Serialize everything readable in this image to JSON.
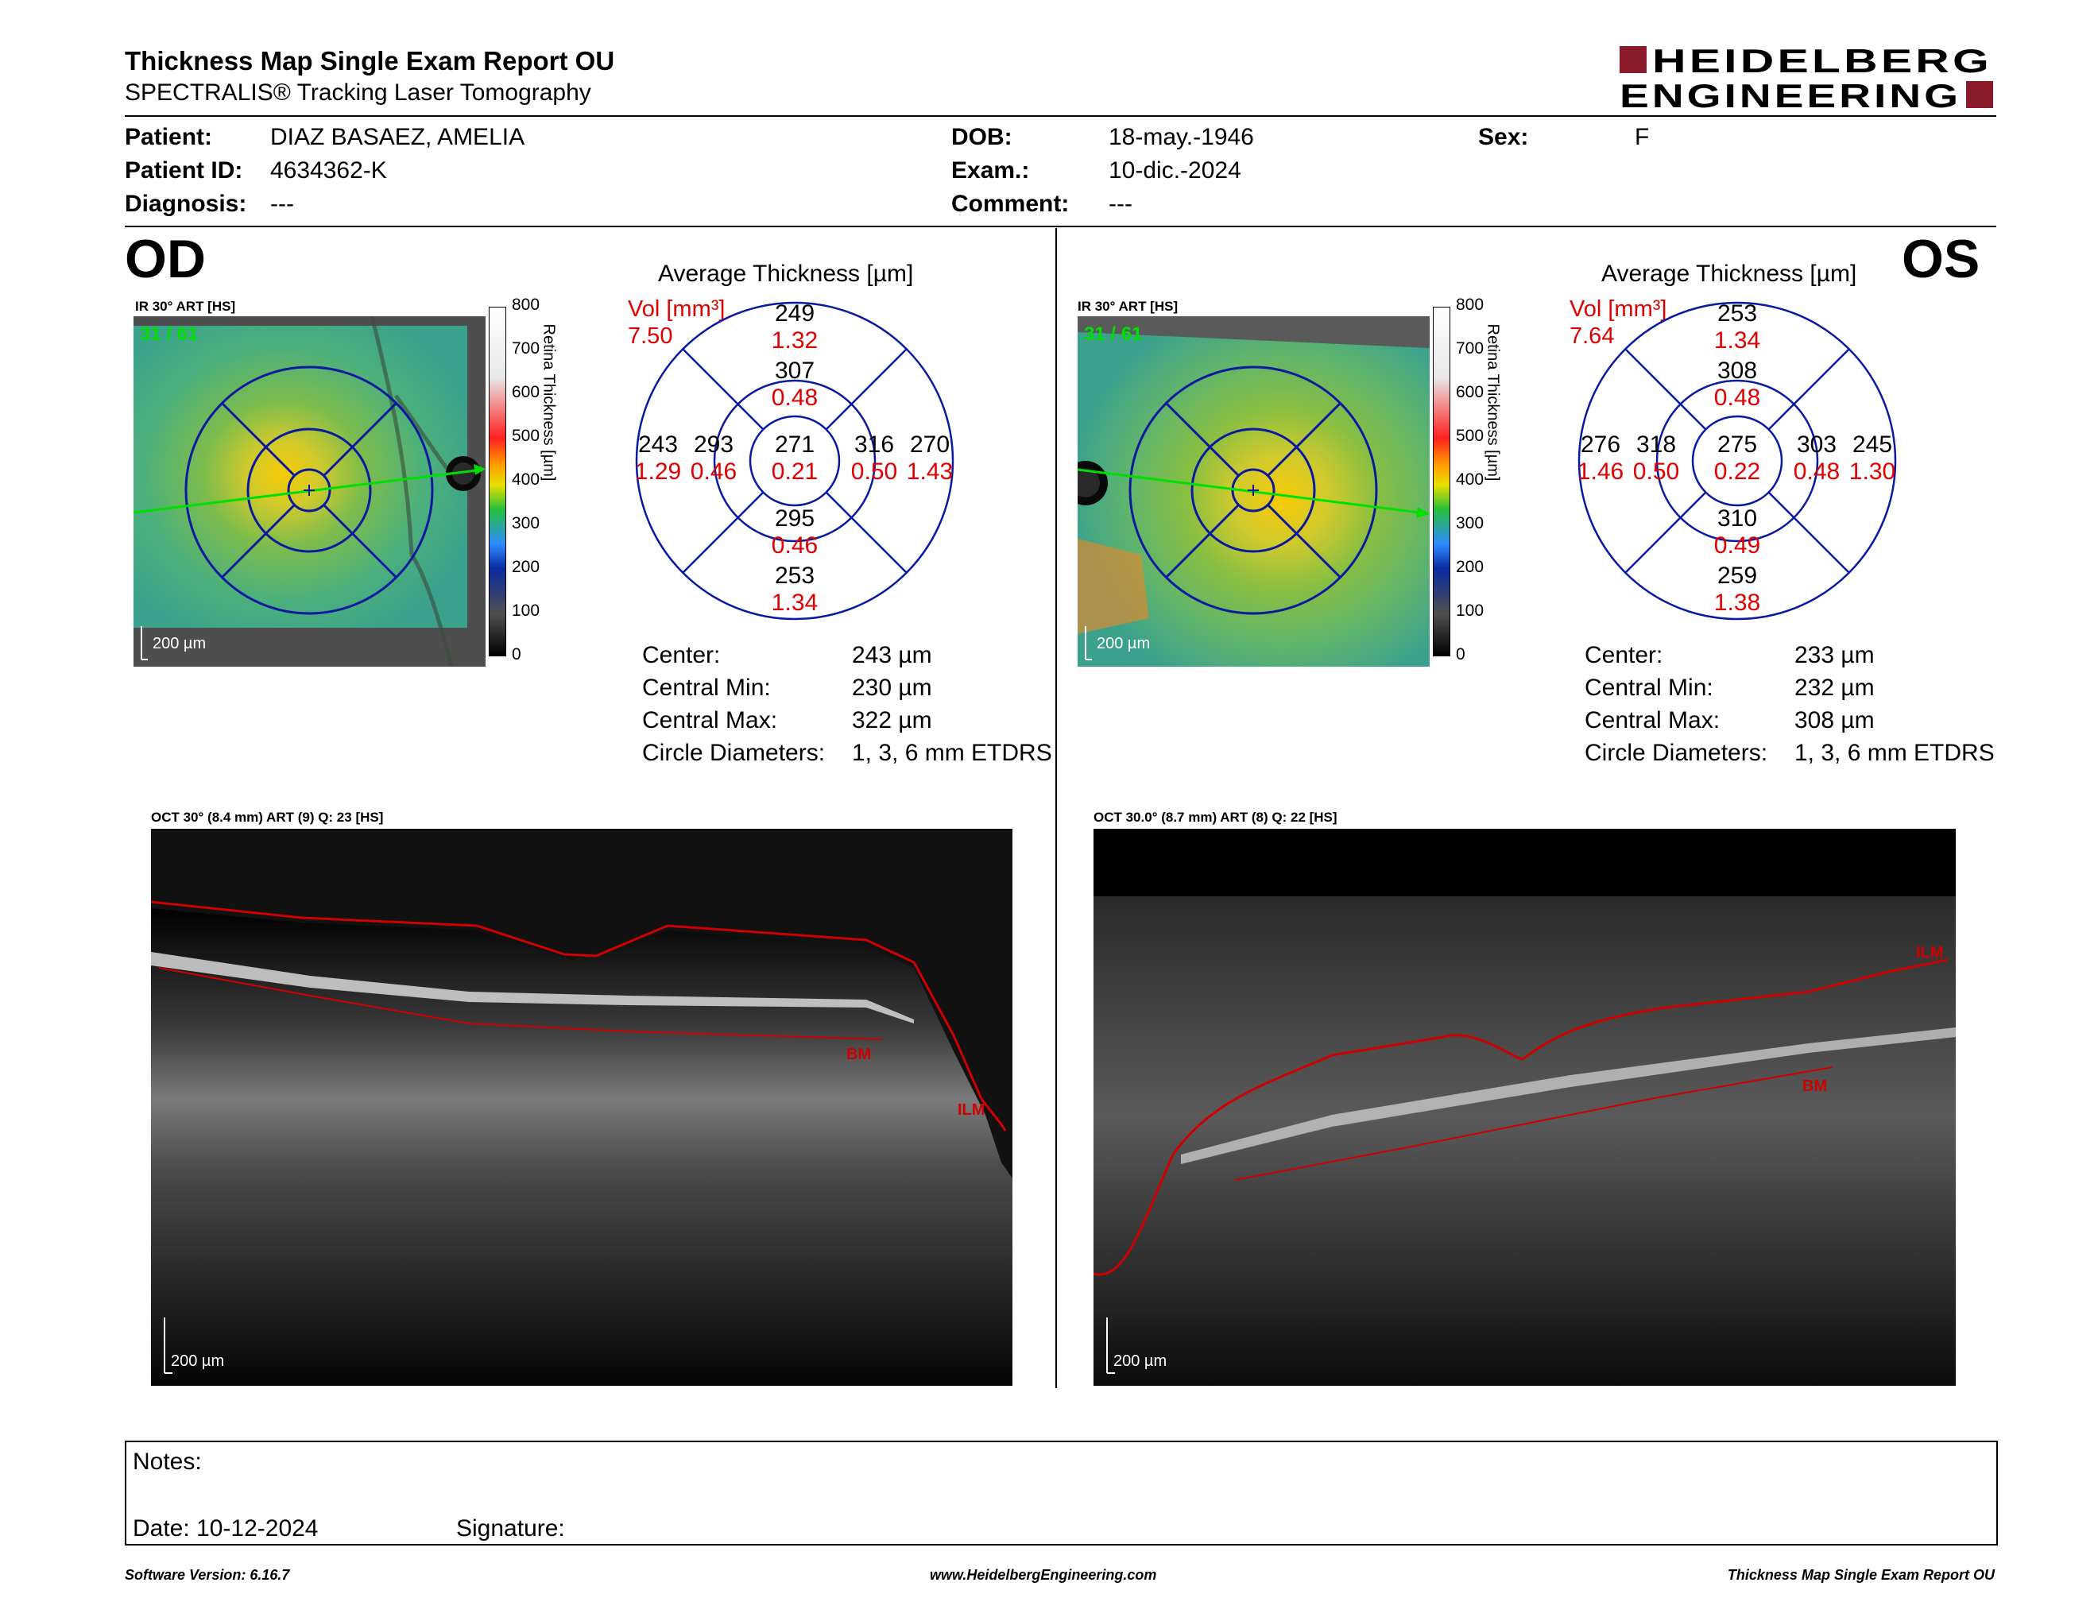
{
  "header": {
    "title": "Thickness Map Single Exam Report OU",
    "subtitle": "SPECTRALIS® Tracking Laser Tomography",
    "logo_line1": "HEIDELBERG",
    "logo_line2": "ENGINEERING",
    "logo_color": "#8b1a2b"
  },
  "patient": {
    "patient_label": "Patient:",
    "patient_value": "DIAZ BASAEZ, AMELIA",
    "id_label": "Patient ID:",
    "id_value": "4634362-K",
    "diagnosis_label": "Diagnosis:",
    "diagnosis_value": "---",
    "dob_label": "DOB:",
    "dob_value": "18-may.-1946",
    "exam_label": "Exam.:",
    "exam_value": "10-dic.-2024",
    "comment_label": "Comment:",
    "comment_value": "---",
    "sex_label": "Sex:",
    "sex_value": "F"
  },
  "od": {
    "eye": "OD",
    "ir_title": "IR 30° ART [HS]",
    "ir_counter": "31 / 61",
    "ir_scale": "200 µm",
    "colorbar_ticks": [
      "800",
      "700",
      "600",
      "500",
      "400",
      "300",
      "200",
      "100",
      "0"
    ],
    "colorbar_label": "Retina Thickness [µm]",
    "avg_title": "Average Thickness [µm]",
    "vol_label": "Vol [mm³]",
    "vol_value": "7.50",
    "sectors": {
      "center": [
        "271",
        "0.21"
      ],
      "inner_sup": [
        "307",
        "0.48"
      ],
      "inner_inf": [
        "295",
        "0.46"
      ],
      "inner_left": [
        "293",
        "0.46"
      ],
      "inner_right": [
        "316",
        "0.50"
      ],
      "outer_sup": [
        "249",
        "1.32"
      ],
      "outer_inf": [
        "253",
        "1.34"
      ],
      "outer_left": [
        "243",
        "1.29"
      ],
      "outer_right": [
        "270",
        "1.43"
      ]
    },
    "stats": [
      {
        "label": "Center:",
        "value": "243 µm"
      },
      {
        "label": "Central Min:",
        "value": "230 µm"
      },
      {
        "label": "Central Max:",
        "value": "322 µm"
      },
      {
        "label": "Circle Diameters:",
        "value": "1, 3, 6 mm ETDRS"
      }
    ],
    "oct_title": "OCT 30° (8.4 mm) ART (9) Q: 23 [HS]",
    "oct_bm": "BM",
    "oct_ilm": "ILM",
    "oct_scale": "200 µm"
  },
  "os": {
    "eye": "OS",
    "ir_title": "IR 30° ART [HS]",
    "ir_counter": "31 / 61",
    "ir_scale": "200 µm",
    "colorbar_ticks": [
      "800",
      "700",
      "600",
      "500",
      "400",
      "300",
      "200",
      "100",
      "0"
    ],
    "colorbar_label": "Retina Thickness [µm]",
    "avg_title": "Average Thickness [µm]",
    "vol_label": "Vol [mm³]",
    "vol_value": "7.64",
    "sectors": {
      "center": [
        "275",
        "0.22"
      ],
      "inner_sup": [
        "308",
        "0.48"
      ],
      "inner_inf": [
        "310",
        "0.49"
      ],
      "inner_left": [
        "318",
        "0.50"
      ],
      "inner_right": [
        "303",
        "0.48"
      ],
      "outer_sup": [
        "253",
        "1.34"
      ],
      "outer_inf": [
        "259",
        "1.38"
      ],
      "outer_left": [
        "276",
        "1.46"
      ],
      "outer_right": [
        "245",
        "1.30"
      ]
    },
    "stats": [
      {
        "label": "Center:",
        "value": "233 µm"
      },
      {
        "label": "Central Min:",
        "value": "232 µm"
      },
      {
        "label": "Central Max:",
        "value": "308 µm"
      },
      {
        "label": "Circle Diameters:",
        "value": "1, 3, 6 mm ETDRS"
      }
    ],
    "oct_title": "OCT 30.0° (8.7 mm) ART (8) Q: 22 [HS]",
    "oct_bm": "BM",
    "oct_ilm": "ILM",
    "oct_scale": "200 µm"
  },
  "notes": {
    "notes_label": "Notes:",
    "date_label": "Date: 10-12-2024",
    "signature_label": "Signature:"
  },
  "footer": {
    "software": "Software Version: 6.16.7",
    "website": "www.HeidelbergEngineering.com",
    "report": "Thickness Map Single Exam Report OU"
  },
  "colors": {
    "volume_red": "#e00000",
    "etdrs_blue": "#0a1aa0",
    "scan_green": "#00e000",
    "segmentation_red": "#d00000"
  }
}
